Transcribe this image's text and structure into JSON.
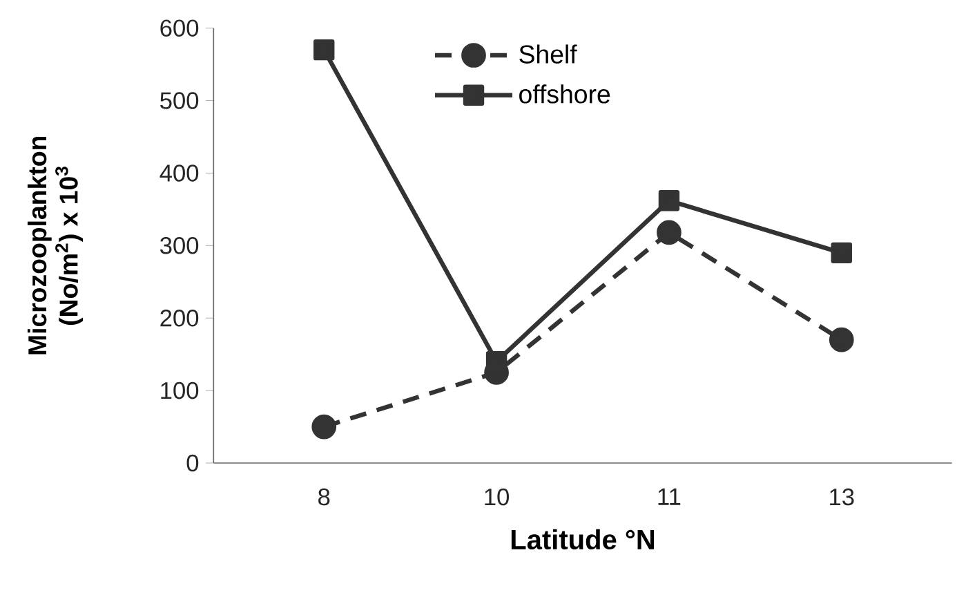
{
  "chart_data": {
    "type": "line",
    "xlabel": "Latitude °N",
    "ylabel": "Microzooplankton (No/m$^{2}$) x 10$^{3}$",
    "categories": [
      "8",
      "10",
      "11",
      "13"
    ],
    "series": [
      {
        "name": "Shelf",
        "color": "#333333",
        "marker": "circle",
        "line_style": "dashed",
        "values": [
          50,
          125,
          318,
          170
        ]
      },
      {
        "name": "offshore",
        "color": "#333333",
        "marker": "square",
        "line_style": "solid",
        "values": [
          570,
          140,
          362,
          290
        ]
      }
    ],
    "ylim": [
      0,
      600
    ],
    "yticks": [
      0,
      100,
      200,
      300,
      400,
      500,
      600
    ],
    "legend": "top",
    "grid": false
  }
}
